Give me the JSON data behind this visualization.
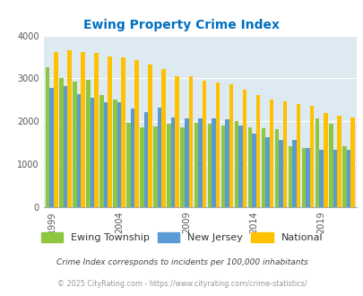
{
  "title": "Ewing Property Crime Index",
  "years": [
    1999,
    2000,
    2001,
    2002,
    2003,
    2004,
    2005,
    2006,
    2007,
    2008,
    2009,
    2010,
    2011,
    2012,
    2013,
    2014,
    2015,
    2016,
    2017,
    2018,
    2019,
    2020,
    2021
  ],
  "ewing": [
    3250,
    3010,
    2920,
    2970,
    2610,
    2500,
    1970,
    1870,
    1890,
    1940,
    1850,
    1960,
    1950,
    1900,
    2000,
    1850,
    1840,
    1820,
    1430,
    1380,
    2060,
    1950,
    1420
  ],
  "nj": [
    2770,
    2820,
    2640,
    2550,
    2450,
    2440,
    2300,
    2210,
    2310,
    2090,
    2070,
    2070,
    2070,
    2040,
    1910,
    1720,
    1630,
    1560,
    1560,
    1370,
    1340,
    1340,
    1340
  ],
  "national": [
    3620,
    3650,
    3620,
    3600,
    3510,
    3480,
    3430,
    3320,
    3220,
    3050,
    3050,
    2940,
    2910,
    2870,
    2730,
    2620,
    2500,
    2460,
    2400,
    2370,
    2200,
    2130,
    2100
  ],
  "ewing_color": "#8dc63f",
  "nj_color": "#5b9bd5",
  "national_color": "#ffc000",
  "bg_color": "#deeaf1",
  "title_color": "#0070c0",
  "ylabel_max": 4000,
  "tick_years": [
    1999,
    2004,
    2009,
    2014,
    2019
  ],
  "legend_labels": [
    "Ewing Township",
    "New Jersey",
    "National"
  ],
  "subtitle": "Crime Index corresponds to incidents per 100,000 inhabitants",
  "footer": "© 2025 CityRating.com - https://www.cityrating.com/crime-statistics/",
  "subtitle_color": "#444444",
  "footer_color": "#999999"
}
